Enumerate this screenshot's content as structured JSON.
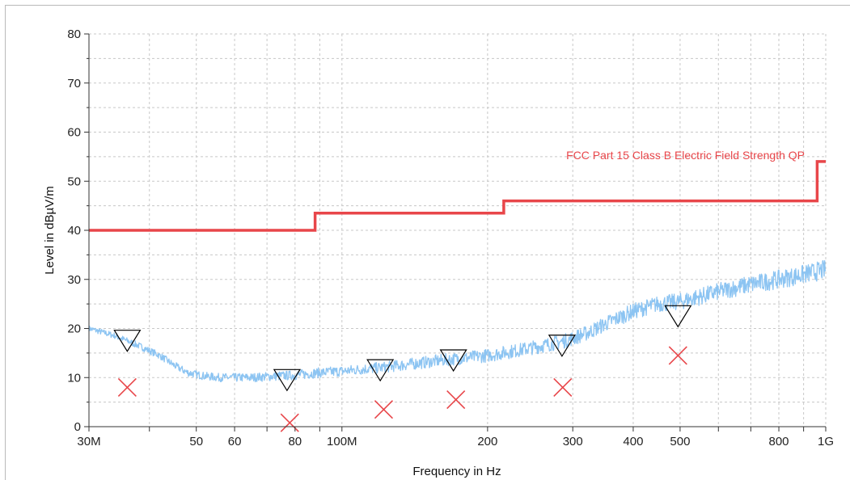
{
  "chart_data": {
    "type": "line",
    "title": "",
    "xlabel": "Frequency in Hz",
    "ylabel": "Level in dBµV/m",
    "x_scale": "log",
    "xlim": [
      30000000,
      1000000000
    ],
    "ylim": [
      0,
      80
    ],
    "y_ticks": [
      0,
      10,
      20,
      30,
      40,
      50,
      60,
      70,
      80
    ],
    "x_tick_labels": [
      {
        "value": 30000000,
        "label": "30M"
      },
      {
        "value": 50000000,
        "label": "50"
      },
      {
        "value": 60000000,
        "label": "60"
      },
      {
        "value": 80000000,
        "label": "80"
      },
      {
        "value": 100000000,
        "label": "100M"
      },
      {
        "value": 200000000,
        "label": "200"
      },
      {
        "value": 300000000,
        "label": "300"
      },
      {
        "value": 400000000,
        "label": "400"
      },
      {
        "value": 500000000,
        "label": "500"
      },
      {
        "value": 800000000,
        "label": "800"
      },
      {
        "value": 1000000000,
        "label": "1G"
      }
    ],
    "grid": true,
    "series": [
      {
        "name": "FCC Part 15 Class B Electric Field Strength QP",
        "kind": "limit",
        "color": "#e8464a",
        "x": [
          30000000,
          88000000,
          88000000,
          216000000,
          216000000,
          960000000,
          960000000,
          1000000000
        ],
        "y": [
          40,
          40,
          43.5,
          43.5,
          46,
          46,
          54,
          54
        ]
      },
      {
        "kind": "trace",
        "color": "#8cc4f2",
        "x": [
          30000000,
          34000000,
          38000000,
          42000000,
          45000000,
          48000000,
          52000000,
          56000000,
          60000000,
          65000000,
          70000000,
          80000000,
          90000000,
          100000000,
          110000000,
          120000000,
          140000000,
          160000000,
          180000000,
          200000000,
          230000000,
          260000000,
          290000000,
          320000000,
          360000000,
          400000000,
          450000000,
          500000000,
          550000000,
          600000000,
          700000000,
          800000000,
          900000000,
          1000000000
        ],
        "y": [
          20,
          18.5,
          16.5,
          14.5,
          12.5,
          11,
          10.3,
          10,
          10,
          10,
          10.2,
          10.5,
          11,
          11.3,
          11.7,
          12,
          12.8,
          13.5,
          14,
          14.5,
          15.5,
          16.5,
          17.5,
          19,
          21.5,
          23.5,
          25,
          25.5,
          26.5,
          27.5,
          29,
          30,
          31,
          32
        ]
      }
    ],
    "peaks": [
      {
        "x": 36000000,
        "y": 17.5
      },
      {
        "x": 77000000,
        "y": 9.5
      },
      {
        "x": 120000000,
        "y": 11.5
      },
      {
        "x": 170000000,
        "y": 13.5
      },
      {
        "x": 285000000,
        "y": 16.5
      },
      {
        "x": 495000000,
        "y": 22.5
      }
    ],
    "qp_measurements": [
      {
        "x": 36000000,
        "y": 8
      },
      {
        "x": 78000000,
        "y": 0.8
      },
      {
        "x": 122000000,
        "y": 3.5
      },
      {
        "x": 172000000,
        "y": 5.5
      },
      {
        "x": 286000000,
        "y": 8
      },
      {
        "x": 495000000,
        "y": 14.5
      }
    ],
    "peak_marker_color": "#000000",
    "qp_marker_color": "#e8464a",
    "grid_color": "#c8c8c8"
  }
}
